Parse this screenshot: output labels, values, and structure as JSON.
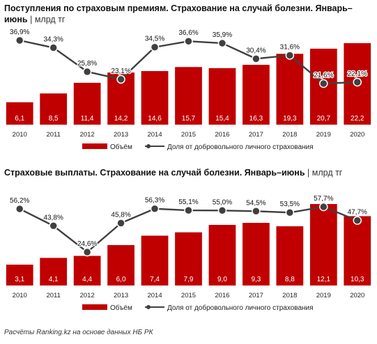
{
  "chart_data": [
    {
      "type": "bar",
      "title": "Поступления по страховым премиям. Страхование на случай болезни. Январь–июнь",
      "unit": "млрд тг",
      "categories": [
        "2010",
        "2011",
        "2012",
        "2013",
        "2014",
        "2015",
        "2016",
        "2017",
        "2018",
        "2019",
        "2020"
      ],
      "series": [
        {
          "name": "Объём",
          "type": "bar",
          "values": [
            6.1,
            8.5,
            11.4,
            14.2,
            14.6,
            15.7,
            15.4,
            16.3,
            19.3,
            20.7,
            22.2
          ],
          "labels": [
            "6,1",
            "8,5",
            "11,4",
            "14,2",
            "14,6",
            "15,7",
            "15,4",
            "16,3",
            "19,3",
            "20,7",
            "22,2"
          ],
          "color": "#c00000"
        },
        {
          "name": "Доля от добровольного личного страхования",
          "type": "line",
          "values": [
            36.9,
            34.3,
            25.8,
            23.1,
            34.5,
            36.6,
            35.9,
            30.4,
            31.6,
            21.6,
            22.1
          ],
          "labels": [
            "36,9%",
            "34,3%",
            "25,8%",
            "23,1%",
            "34,5%",
            "36,6%",
            "35,9%",
            "30,4%",
            "31,6%",
            "21,6%",
            "22,1%"
          ],
          "color": "#404040"
        }
      ],
      "legend": "bottom",
      "grid": false
    },
    {
      "type": "bar",
      "title": "Страховые выплаты.  Страхование на случай болезни. Январь–июнь",
      "unit": "млрд тг",
      "categories": [
        "2010",
        "2011",
        "2012",
        "2013",
        "2014",
        "2015",
        "2016",
        "2017",
        "2018",
        "2019",
        "2020"
      ],
      "series": [
        {
          "name": "Объём",
          "type": "bar",
          "values": [
            3.1,
            4.1,
            4.4,
            6.0,
            7.4,
            7.9,
            9.0,
            9.3,
            8.8,
            12.1,
            10.3
          ],
          "labels": [
            "3,1",
            "4,1",
            "4,4",
            "6,0",
            "7,4",
            "7,9",
            "9,0",
            "9,3",
            "8,8",
            "12,1",
            "10,3"
          ],
          "color": "#c00000"
        },
        {
          "name": "Доля от добровольного личного страхования",
          "type": "line",
          "values": [
            56.2,
            43.8,
            24.6,
            45.8,
            56.3,
            55.1,
            55.0,
            54.5,
            53.5,
            57.7,
            47.7
          ],
          "labels": [
            "56,2%",
            "43,8%",
            "24,6%",
            "45,8%",
            "56,3%",
            "55,1%",
            "55,0%",
            "54,5%",
            "53,5%",
            "57,7%",
            "47,7%"
          ],
          "color": "#404040"
        }
      ],
      "legend": "bottom",
      "grid": false
    }
  ],
  "source": "Расчёты Ranking.kz на основе данных НБ РК"
}
